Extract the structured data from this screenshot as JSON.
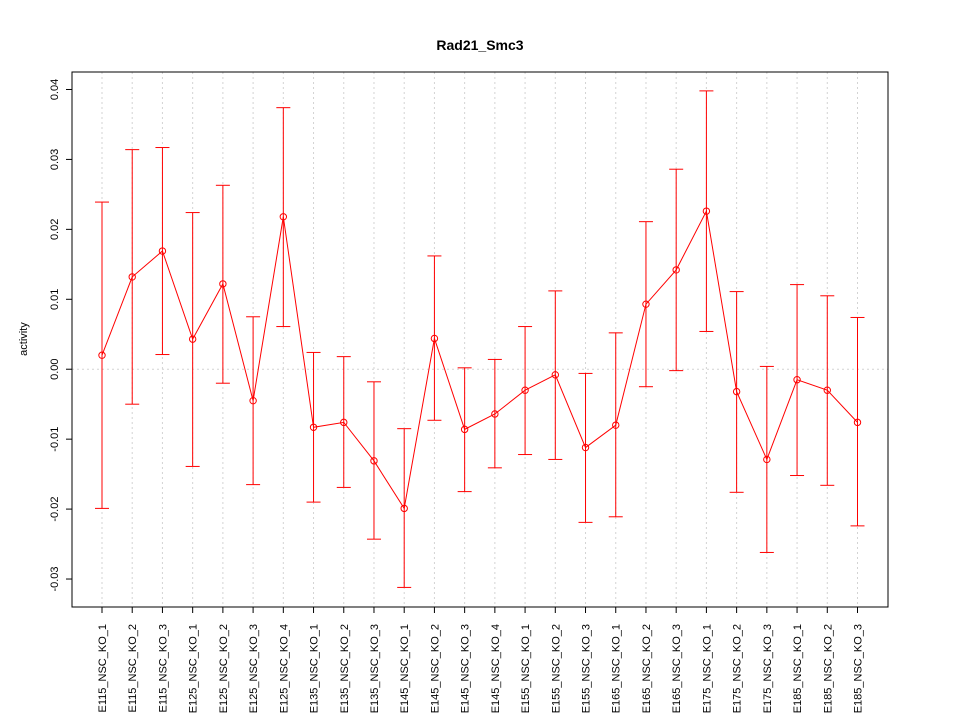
{
  "chart_data": {
    "type": "line",
    "title": "Rad21_Smc3",
    "ylabel": "activity",
    "xlabel": "",
    "ylim": [
      -0.034,
      0.0425
    ],
    "yticks": [
      -0.03,
      -0.02,
      -0.01,
      0.0,
      0.01,
      0.02,
      0.03,
      0.04
    ],
    "ytick_labels": [
      "-0.03",
      "-0.02",
      "-0.01",
      "0.00",
      "0.01",
      "0.02",
      "0.03",
      "0.04"
    ],
    "grid": true,
    "colors": {
      "series": "#ff0000",
      "grid": "#d3d3d3",
      "axis": "#000000"
    },
    "categories": [
      "E115_NSC_KO_1",
      "E115_NSC_KO_2",
      "E115_NSC_KO_3",
      "E125_NSC_KO_1",
      "E125_NSC_KO_2",
      "E125_NSC_KO_3",
      "E125_NSC_KO_4",
      "E135_NSC_KO_1",
      "E135_NSC_KO_2",
      "E135_NSC_KO_3",
      "E145_NSC_KO_1",
      "E145_NSC_KO_2",
      "E145_NSC_KO_3",
      "E145_NSC_KO_4",
      "E155_NSC_KO_1",
      "E155_NSC_KO_2",
      "E155_NSC_KO_3",
      "E165_NSC_KO_1",
      "E165_NSC_KO_2",
      "E165_NSC_KO_3",
      "E175_NSC_KO_1",
      "E175_NSC_KO_2",
      "E175_NSC_KO_3",
      "E185_NSC_KO_1",
      "E185_NSC_KO_2",
      "E185_NSC_KO_3"
    ],
    "series": [
      {
        "values": [
          0.002,
          0.0132,
          0.0169,
          0.0043,
          0.0122,
          -0.0045,
          0.0218,
          -0.0083,
          -0.0076,
          -0.0131,
          -0.0199,
          0.0044,
          -0.0086,
          -0.0064,
          -0.003,
          -0.0008,
          -0.0112,
          -0.008,
          0.0093,
          0.0142,
          0.0226,
          -0.0032,
          -0.0129,
          -0.0015,
          -0.003,
          -0.0076
        ],
        "upper": [
          0.0239,
          0.0314,
          0.0317,
          0.0224,
          0.0263,
          0.0075,
          0.0374,
          0.0024,
          0.0018,
          -0.0018,
          -0.0085,
          0.0162,
          0.0002,
          0.0014,
          0.0061,
          0.0112,
          -0.0006,
          0.0052,
          0.0211,
          0.0286,
          0.0398,
          0.0111,
          0.0004,
          0.0121,
          0.0105,
          0.0074
        ],
        "lower": [
          -0.0199,
          -0.005,
          0.0021,
          -0.0139,
          -0.002,
          -0.0165,
          0.0061,
          -0.019,
          -0.0169,
          -0.0243,
          -0.0312,
          -0.0073,
          -0.0175,
          -0.0141,
          -0.0122,
          -0.0129,
          -0.0219,
          -0.0211,
          -0.0025,
          -0.0002,
          0.0054,
          -0.0176,
          -0.0262,
          -0.0152,
          -0.0166,
          -0.0224
        ]
      }
    ]
  }
}
